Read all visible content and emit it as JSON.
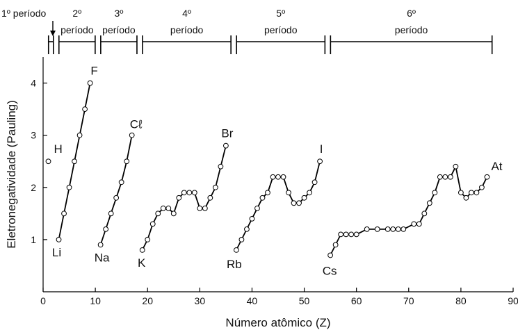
{
  "chart_data": {
    "type": "line",
    "title": "",
    "xlabel": "Número atômico (Z)",
    "ylabel": "Eletronegatividade (Pauling)",
    "xlim": [
      0,
      90
    ],
    "ylim": [
      0,
      4.5
    ],
    "xticks": [
      0,
      10,
      20,
      30,
      40,
      50,
      60,
      70,
      80,
      90
    ],
    "yticks": [
      1,
      2,
      3,
      4
    ],
    "grid": false,
    "legend": "none",
    "colors": {
      "line": "#000000",
      "marker_fill": "#ffffff",
      "marker_stroke": "#000000"
    },
    "periods": [
      {
        "number": "1º",
        "label": "período",
        "range": [
          1,
          2
        ]
      },
      {
        "number": "2º",
        "label": "período",
        "range": [
          3,
          10
        ]
      },
      {
        "number": "3º",
        "label": "período",
        "range": [
          11,
          18
        ]
      },
      {
        "number": "4º",
        "label": "período",
        "range": [
          19,
          36
        ]
      },
      {
        "number": "5º",
        "label": "período",
        "range": [
          37,
          54
        ]
      },
      {
        "number": "6º",
        "label": "período",
        "range": [
          55,
          86
        ]
      }
    ],
    "series": [
      {
        "x": [
          1
        ],
        "y": [
          2.5
        ]
      },
      {
        "x": [
          3,
          4,
          5,
          6,
          7,
          8,
          9
        ],
        "y": [
          1.0,
          1.5,
          2.0,
          2.5,
          3.0,
          3.5,
          4.0
        ]
      },
      {
        "x": [
          11,
          12,
          13,
          14,
          15,
          16,
          17
        ],
        "y": [
          0.9,
          1.2,
          1.5,
          1.8,
          2.1,
          2.5,
          3.0
        ]
      },
      {
        "x": [
          19,
          20,
          21,
          22,
          23,
          24,
          25,
          26,
          27,
          28,
          29,
          30,
          31,
          32,
          33,
          34,
          35
        ],
        "y": [
          0.8,
          1.0,
          1.3,
          1.5,
          1.6,
          1.6,
          1.5,
          1.8,
          1.9,
          1.9,
          1.9,
          1.6,
          1.6,
          1.8,
          2.0,
          2.4,
          2.8
        ]
      },
      {
        "x": [
          37,
          38,
          39,
          40,
          41,
          42,
          43,
          44,
          45,
          46,
          47,
          48,
          49,
          50,
          51,
          52,
          53
        ],
        "y": [
          0.8,
          1.0,
          1.2,
          1.4,
          1.6,
          1.8,
          1.9,
          2.2,
          2.2,
          2.2,
          1.9,
          1.7,
          1.7,
          1.8,
          1.9,
          2.1,
          2.5
        ]
      },
      {
        "x": [
          55,
          56,
          57,
          58,
          59,
          60,
          62,
          64,
          66,
          67,
          68,
          69,
          71,
          72,
          73,
          74,
          75,
          76,
          77,
          78,
          79,
          80,
          81,
          82,
          83,
          84,
          85
        ],
        "y": [
          0.7,
          0.9,
          1.1,
          1.1,
          1.1,
          1.1,
          1.2,
          1.2,
          1.2,
          1.2,
          1.2,
          1.2,
          1.3,
          1.3,
          1.5,
          1.7,
          1.9,
          2.2,
          2.2,
          2.2,
          2.4,
          1.9,
          1.8,
          1.9,
          1.9,
          2.0,
          2.2
        ]
      }
    ],
    "annotations": [
      {
        "text": "H",
        "x": 1,
        "y": 2.5
      },
      {
        "text": "Li",
        "x": 3,
        "y": 1.0
      },
      {
        "text": "F",
        "x": 9,
        "y": 4.0
      },
      {
        "text": "Na",
        "x": 11,
        "y": 0.9
      },
      {
        "text": "Cℓ",
        "x": 17,
        "y": 3.0
      },
      {
        "text": "K",
        "x": 19,
        "y": 0.8
      },
      {
        "text": "Br",
        "x": 35,
        "y": 2.8
      },
      {
        "text": "Rb",
        "x": 37,
        "y": 0.8
      },
      {
        "text": "I",
        "x": 53,
        "y": 2.5
      },
      {
        "text": "Cs",
        "x": 55,
        "y": 0.7
      },
      {
        "text": "At",
        "x": 85,
        "y": 2.2
      }
    ]
  }
}
